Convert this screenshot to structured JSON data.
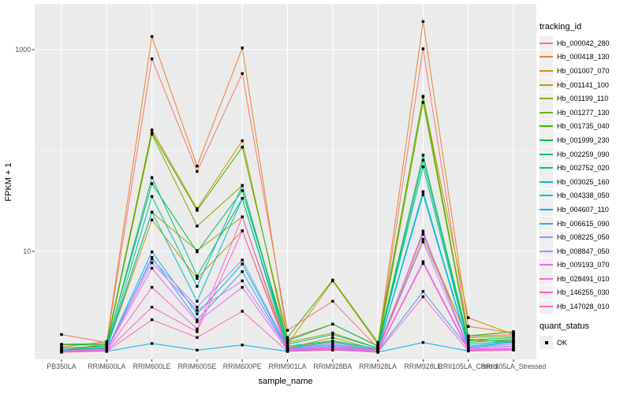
{
  "figure": {
    "background": "#FFFFFF",
    "panel_background": "#EBEBEB",
    "grid_color": "#FFFFFF",
    "tick_text_color": "#4D4D4D",
    "tick_mark_color": "#333333",
    "marker_color": "#000000"
  },
  "axes": {
    "x": {
      "title": "sample_name"
    },
    "y": {
      "title": "FPKM + 1",
      "tick_labels": [
        "10",
        "1000"
      ]
    }
  },
  "legend": {
    "tracking_title": "tracking_id",
    "quant_title": "quant_status",
    "quant_items": [
      {
        "label": "OK",
        "marker": "black-square"
      }
    ]
  },
  "chart_data": {
    "type": "line",
    "x_categories": [
      "PB350LA",
      "RRIM600LA",
      "RRIM600LE",
      "RRIM600SE",
      "RRIM600PE",
      "RRIM901LA",
      "RRIM928BA",
      "RRIM928LA",
      "RRIM928LE",
      "RRII105LA_Control",
      "RRII105LA_Stressed"
    ],
    "xlabel": "sample_name",
    "ylabel": "FPKM + 1",
    "y_scale": "log10",
    "y_major_breaks": [
      10,
      1000
    ],
    "y_minor_breaks": [
      1,
      100
    ],
    "ylim": [
      1,
      2300
    ],
    "legend_position": "right",
    "point_marker": "small-black-square",
    "series": [
      {
        "name": "Hb_000042_280",
        "color": "#F8766D",
        "values": [
          1.5,
          1.25,
          810,
          62,
          580,
          1.65,
          3.2,
          1.1,
          1020,
          1.45,
          1.5
        ]
      },
      {
        "name": "Hb_000418_130",
        "color": "#EA8331",
        "values": [
          1.12,
          1.28,
          1350,
          70,
          1040,
          1.35,
          1.9,
          1.15,
          1900,
          1.8,
          1.55
        ]
      },
      {
        "name": "Hb_001007_070",
        "color": "#D89000",
        "values": [
          1.05,
          1.2,
          160,
          26.5,
          125,
          1.2,
          5.1,
          1.2,
          345,
          2.2,
          1.5
        ]
      },
      {
        "name": "Hb_001141_100",
        "color": "#C09B00",
        "values": [
          1.02,
          1.1,
          20.5,
          5.4,
          16,
          1.1,
          1.4,
          1.05,
          13.2,
          1.35,
          1.25
        ]
      },
      {
        "name": "Hb_001199_110",
        "color": "#A3A500",
        "values": [
          1.02,
          1.12,
          24.5,
          10.2,
          22,
          1.12,
          1.28,
          1.08,
          15,
          1.3,
          1.3
        ]
      },
      {
        "name": "Hb_001277_130",
        "color": "#7CAE00",
        "values": [
          1.05,
          1.15,
          145,
          17.8,
          45,
          1.25,
          1.55,
          1.1,
          300,
          1.4,
          1.45
        ]
      },
      {
        "name": "Hb_001735_040",
        "color": "#39B600",
        "values": [
          1.2,
          1.22,
          150,
          25.5,
          108,
          1.4,
          5.2,
          1.25,
          340,
          1.45,
          1.6
        ]
      },
      {
        "name": "Hb_001999_230",
        "color": "#00BB4E",
        "values": [
          1.18,
          1.18,
          47,
          9.9,
          40,
          1.3,
          1.9,
          1.15,
          90,
          1.32,
          1.4
        ]
      },
      {
        "name": "Hb_002259_090",
        "color": "#00BF7D",
        "values": [
          1.1,
          1.15,
          54,
          5.7,
          33.5,
          1.2,
          1.5,
          1.1,
          80,
          1.25,
          1.35
        ]
      },
      {
        "name": "Hb_002752_020",
        "color": "#00C1A3",
        "values": [
          1.06,
          1.1,
          35,
          4.5,
          45,
          1.15,
          1.3,
          1.08,
          69,
          1.2,
          1.3
        ]
      },
      {
        "name": "Hb_003025_160",
        "color": "#00BFC4",
        "values": [
          1.05,
          1.08,
          24.5,
          3.2,
          33.5,
          1.1,
          1.25,
          1.05,
          39,
          1.15,
          1.28
        ]
      },
      {
        "name": "Hb_004338_050",
        "color": "#00BAE0",
        "values": [
          1.03,
          1.05,
          9.9,
          2.4,
          7.5,
          1.08,
          1.2,
          1.04,
          36.5,
          1.12,
          1.25
        ]
      },
      {
        "name": "Hb_004607_110",
        "color": "#00B0F6",
        "values": [
          1.02,
          1.02,
          1.22,
          1.05,
          1.18,
          1.02,
          1.06,
          1.0,
          1.25,
          1.03,
          1.06
        ]
      },
      {
        "name": "Hb_006615_090",
        "color": "#35A2FF",
        "values": [
          1.02,
          1.05,
          8.7,
          2.1,
          6.3,
          1.06,
          1.15,
          1.03,
          4.0,
          1.1,
          1.15
        ]
      },
      {
        "name": "Hb_008225_050",
        "color": "#9590FF",
        "values": [
          1.03,
          1.08,
          8.4,
          2.8,
          8.2,
          1.1,
          1.2,
          1.05,
          14.8,
          1.12,
          1.2
        ]
      },
      {
        "name": "Hb_008847_050",
        "color": "#C77CFF",
        "values": [
          1.02,
          1.06,
          7.7,
          2.6,
          5.1,
          1.08,
          1.18,
          1.04,
          12.4,
          1.1,
          1.15
        ]
      },
      {
        "name": "Hb_009193_070",
        "color": "#E76BF3",
        "values": [
          1.02,
          1.05,
          6.8,
          2.0,
          4.4,
          1.05,
          1.12,
          1.03,
          7.9,
          1.08,
          1.1
        ]
      },
      {
        "name": "Hb_028491_010",
        "color": "#FA62DB",
        "values": [
          1.01,
          1.04,
          4.4,
          1.7,
          22,
          1.04,
          1.1,
          1.02,
          15.9,
          1.06,
          1.08
        ]
      },
      {
        "name": "Hb_146255_030",
        "color": "#FF61CC",
        "values": [
          1.01,
          1.03,
          2.8,
          1.6,
          16,
          1.03,
          1.08,
          1.01,
          7.6,
          1.05,
          1.06
        ]
      },
      {
        "name": "Hb_147028_010",
        "color": "#FF67BC",
        "values": [
          1.0,
          1.02,
          2.1,
          1.4,
          2.55,
          1.02,
          1.05,
          1.0,
          3.55,
          1.03,
          1.05
        ]
      }
    ]
  }
}
